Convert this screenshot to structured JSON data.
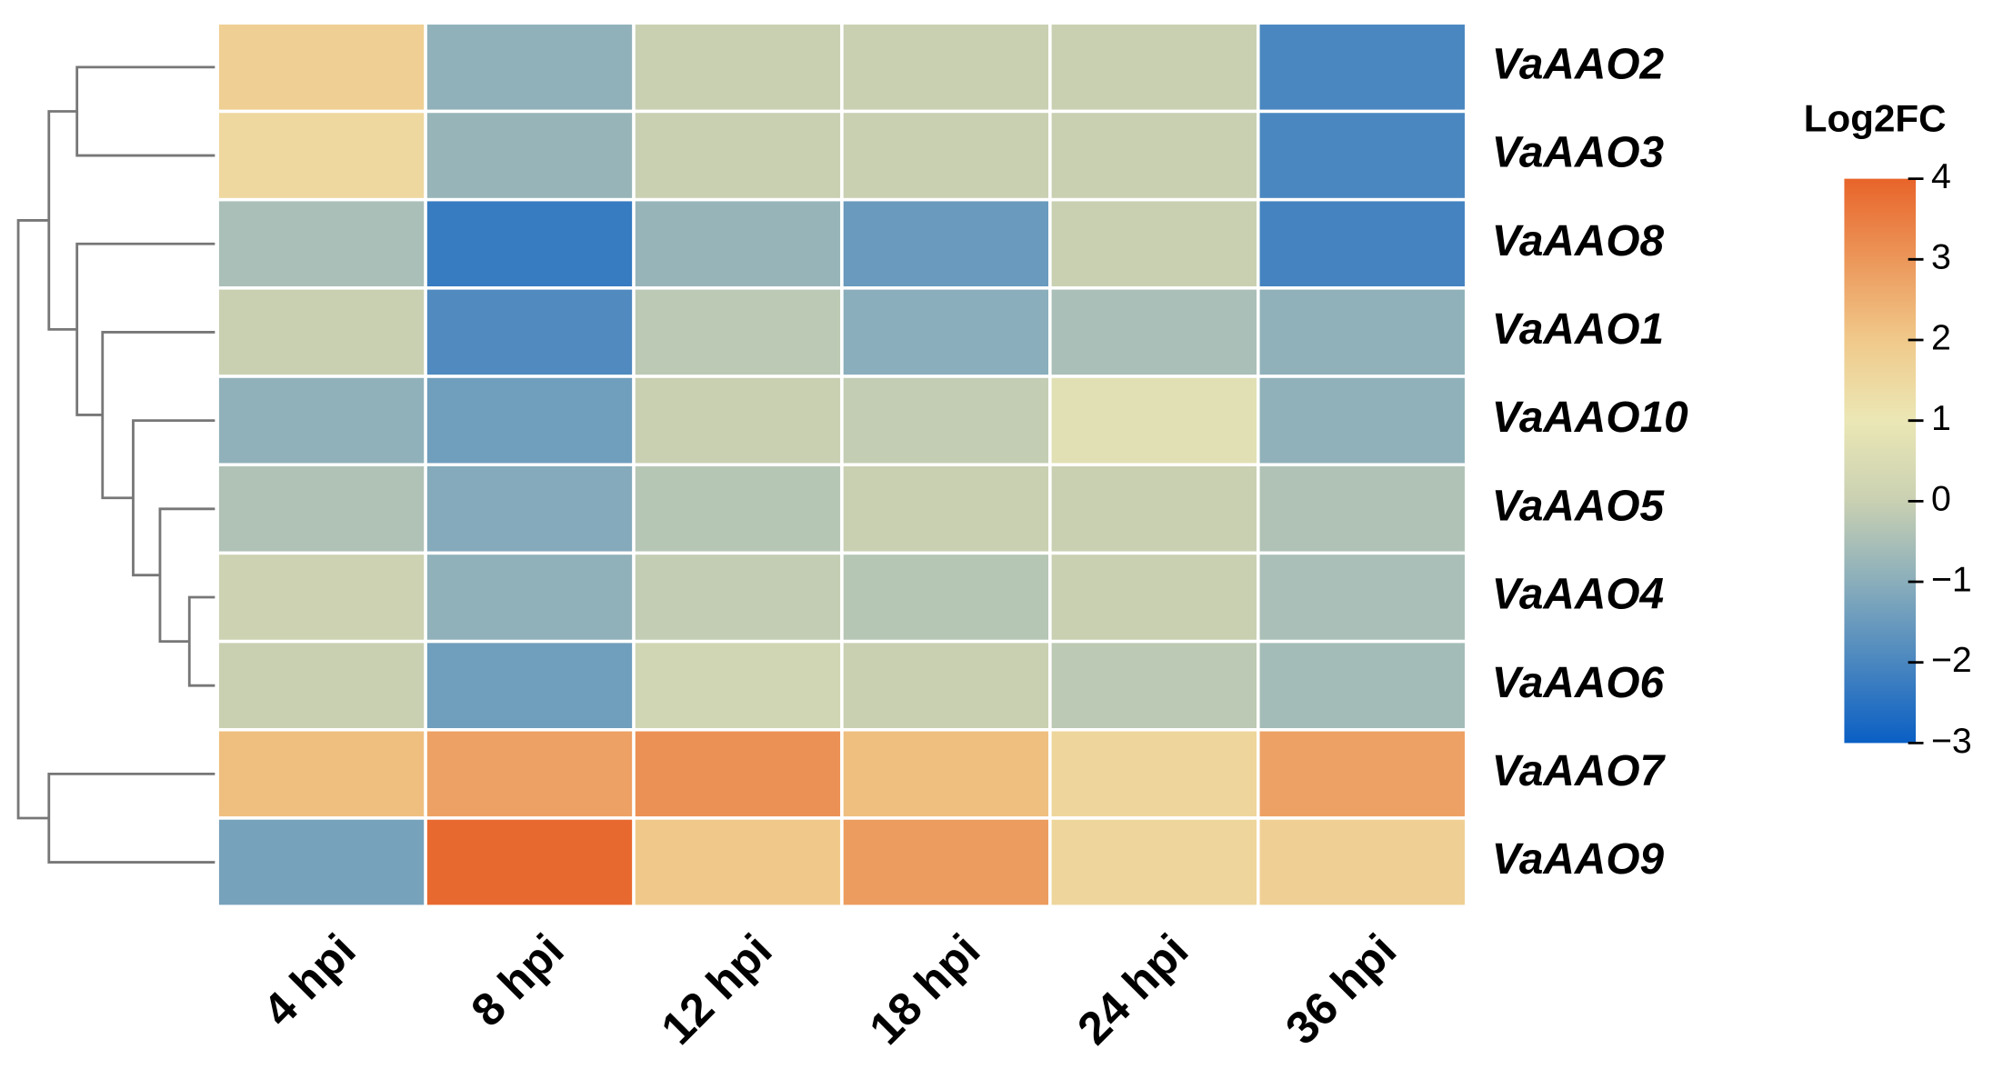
{
  "chart_data": {
    "type": "heatmap",
    "categories": [
      "4 hpi",
      "8 hpi",
      "12 hpi",
      "18 hpi",
      "24 hpi",
      "36 hpi"
    ],
    "rows": [
      "VaAAO2",
      "VaAAO3",
      "VaAAO8",
      "VaAAO1",
      "VaAAO10",
      "VaAAO5",
      "VaAAO4",
      "VaAAO6",
      "VaAAO7",
      "VaAAO9"
    ],
    "values": [
      [
        1.8,
        -0.9,
        0,
        0,
        0,
        -2.0
      ],
      [
        1.5,
        -0.8,
        0,
        0,
        0,
        -2.0
      ],
      [
        -0.5,
        -2.3,
        -0.8,
        -1.5,
        0,
        -2.1
      ],
      [
        0,
        -1.9,
        -0.2,
        -1.0,
        -0.5,
        -0.9
      ],
      [
        -0.9,
        -1.4,
        0,
        -0.1,
        0.7,
        -0.9
      ],
      [
        -0.4,
        -1.1,
        -0.3,
        0,
        0,
        -0.4
      ],
      [
        0.1,
        -0.9,
        -0.1,
        -0.3,
        0,
        -0.5
      ],
      [
        0,
        -1.4,
        0.2,
        0,
        -0.2,
        -0.6
      ],
      [
        2.2,
        2.8,
        3.1,
        2.2,
        1.6,
        2.8
      ],
      [
        -1.3,
        3.9,
        2.0,
        2.9,
        1.6,
        1.8
      ]
    ],
    "colorbar_title": "Log2FC",
    "clim": [
      -3,
      4
    ],
    "cticks": [
      {
        "value": -3,
        "label": "−3"
      },
      {
        "value": -2,
        "label": "−2"
      },
      {
        "value": -1,
        "label": "−1"
      },
      0,
      1,
      2,
      3,
      4
    ],
    "colorscale": [
      [
        -3,
        "#0a5fc4"
      ],
      [
        -1,
        "#8aaebb"
      ],
      [
        0,
        "#c9d0b2"
      ],
      [
        1,
        "#ebe7b5"
      ],
      [
        2,
        "#f0c98a"
      ],
      [
        4,
        "#e8642a"
      ]
    ]
  }
}
